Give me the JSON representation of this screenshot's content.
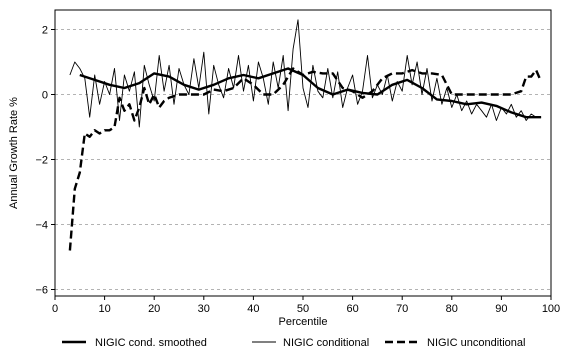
{
  "chart_data": {
    "type": "line",
    "title": "",
    "xlabel": "Percentile",
    "ylabel": "Annual Growth Rate %",
    "xlim": [
      0,
      100
    ],
    "ylim": [
      -6.2,
      2.6
    ],
    "xticks": [
      0,
      10,
      20,
      30,
      40,
      50,
      60,
      70,
      80,
      90,
      100
    ],
    "yticks": [
      -6,
      -4,
      -2,
      0,
      2
    ],
    "grid": "horizontal dashed",
    "legend_position": "bottom",
    "series": [
      {
        "name": "NIGIC cond. smoothed",
        "style": "thick-solid",
        "x": [
          5,
          8,
          11,
          14,
          17,
          20,
          23,
          26,
          29,
          32,
          35,
          38,
          41,
          44,
          47,
          50,
          53,
          56,
          59,
          62,
          65,
          68,
          71,
          74,
          77,
          80,
          83,
          86,
          89,
          92,
          95,
          98
        ],
        "y": [
          0.6,
          0.45,
          0.3,
          0.2,
          0.35,
          0.65,
          0.55,
          0.3,
          0.15,
          0.3,
          0.5,
          0.6,
          0.5,
          0.65,
          0.8,
          0.6,
          0.2,
          0.0,
          0.15,
          0.05,
          0.0,
          0.3,
          0.45,
          0.2,
          -0.15,
          -0.2,
          -0.3,
          -0.25,
          -0.35,
          -0.55,
          -0.7,
          -0.7
        ]
      },
      {
        "name": "NIGIC conditional",
        "style": "thin-solid",
        "x": [
          3,
          4,
          5,
          6,
          7,
          8,
          9,
          10,
          11,
          12,
          13,
          14,
          15,
          16,
          17,
          18,
          19,
          20,
          21,
          22,
          23,
          24,
          25,
          26,
          27,
          28,
          29,
          30,
          31,
          32,
          33,
          34,
          35,
          36,
          37,
          38,
          39,
          40,
          41,
          42,
          43,
          44,
          45,
          46,
          47,
          48,
          49,
          50,
          51,
          52,
          53,
          54,
          55,
          56,
          57,
          58,
          59,
          60,
          61,
          62,
          63,
          64,
          65,
          66,
          67,
          68,
          69,
          70,
          71,
          72,
          73,
          74,
          75,
          76,
          77,
          78,
          79,
          80,
          81,
          82,
          83,
          84,
          85,
          86,
          87,
          88,
          89,
          90,
          91,
          92,
          93,
          94,
          95,
          96,
          97,
          98
        ],
        "y": [
          0.6,
          1.0,
          0.8,
          0.5,
          -0.7,
          0.6,
          -0.3,
          0.4,
          0.0,
          0.8,
          -0.8,
          0.6,
          0.1,
          0.7,
          -1.0,
          0.9,
          0.3,
          -0.2,
          1.2,
          0.1,
          0.9,
          -0.3,
          0.8,
          0.3,
          0.0,
          1.1,
          0.2,
          1.3,
          -0.6,
          0.9,
          0.3,
          -0.1,
          0.8,
          0.2,
          1.2,
          0.1,
          0.9,
          -0.2,
          1.0,
          0.5,
          -0.3,
          1.0,
          0.2,
          1.2,
          -0.5,
          1.4,
          2.3,
          0.2,
          -0.4,
          0.9,
          0.1,
          -0.1,
          0.8,
          -0.1,
          0.7,
          -0.4,
          0.2,
          0.6,
          -0.3,
          0.1,
          1.2,
          -0.1,
          0.3,
          0.0,
          0.6,
          -0.2,
          0.4,
          0.1,
          1.2,
          0.3,
          1.0,
          0.0,
          0.8,
          -0.2,
          0.5,
          -0.3,
          0.2,
          -0.4,
          0.0,
          -0.5,
          -0.2,
          -0.6,
          -0.3,
          -0.5,
          -0.7,
          -0.3,
          -0.8,
          -0.4,
          -0.6,
          -0.3,
          -0.7,
          -0.5,
          -0.8,
          -0.6,
          -0.7,
          -0.7
        ]
      },
      {
        "name": "NIGIC unconditional",
        "style": "thick-dashed",
        "x": [
          3,
          4,
          5,
          6,
          7,
          8,
          9,
          10,
          11,
          12,
          13,
          14,
          15,
          16,
          17,
          18,
          19,
          20,
          21,
          22,
          23,
          24,
          25,
          26,
          28,
          30,
          32,
          34,
          36,
          38,
          40,
          42,
          44,
          46,
          48,
          50,
          52,
          54,
          56,
          58,
          60,
          62,
          64,
          66,
          68,
          70,
          72,
          74,
          76,
          78,
          80,
          82,
          84,
          86,
          88,
          90,
          92,
          94,
          95,
          96,
          97,
          98
        ],
        "y": [
          -4.8,
          -2.9,
          -2.4,
          -1.2,
          -1.3,
          -1.1,
          -1.2,
          -1.1,
          -1.1,
          -1.0,
          -0.1,
          -0.5,
          -0.3,
          -0.8,
          -0.4,
          0.2,
          -0.3,
          0.0,
          -0.4,
          -0.2,
          -0.1,
          -0.05,
          0.0,
          0.0,
          0.0,
          0.0,
          0.15,
          0.1,
          0.2,
          0.5,
          0.3,
          0.0,
          0.0,
          0.3,
          0.8,
          0.6,
          0.7,
          0.65,
          0.65,
          0.2,
          0.1,
          -0.1,
          0.1,
          0.5,
          0.65,
          0.65,
          0.75,
          0.65,
          0.65,
          0.6,
          0.0,
          0.0,
          0.0,
          0.0,
          0.0,
          0.0,
          0.0,
          0.1,
          0.55,
          0.55,
          0.75,
          0.4
        ]
      }
    ]
  }
}
